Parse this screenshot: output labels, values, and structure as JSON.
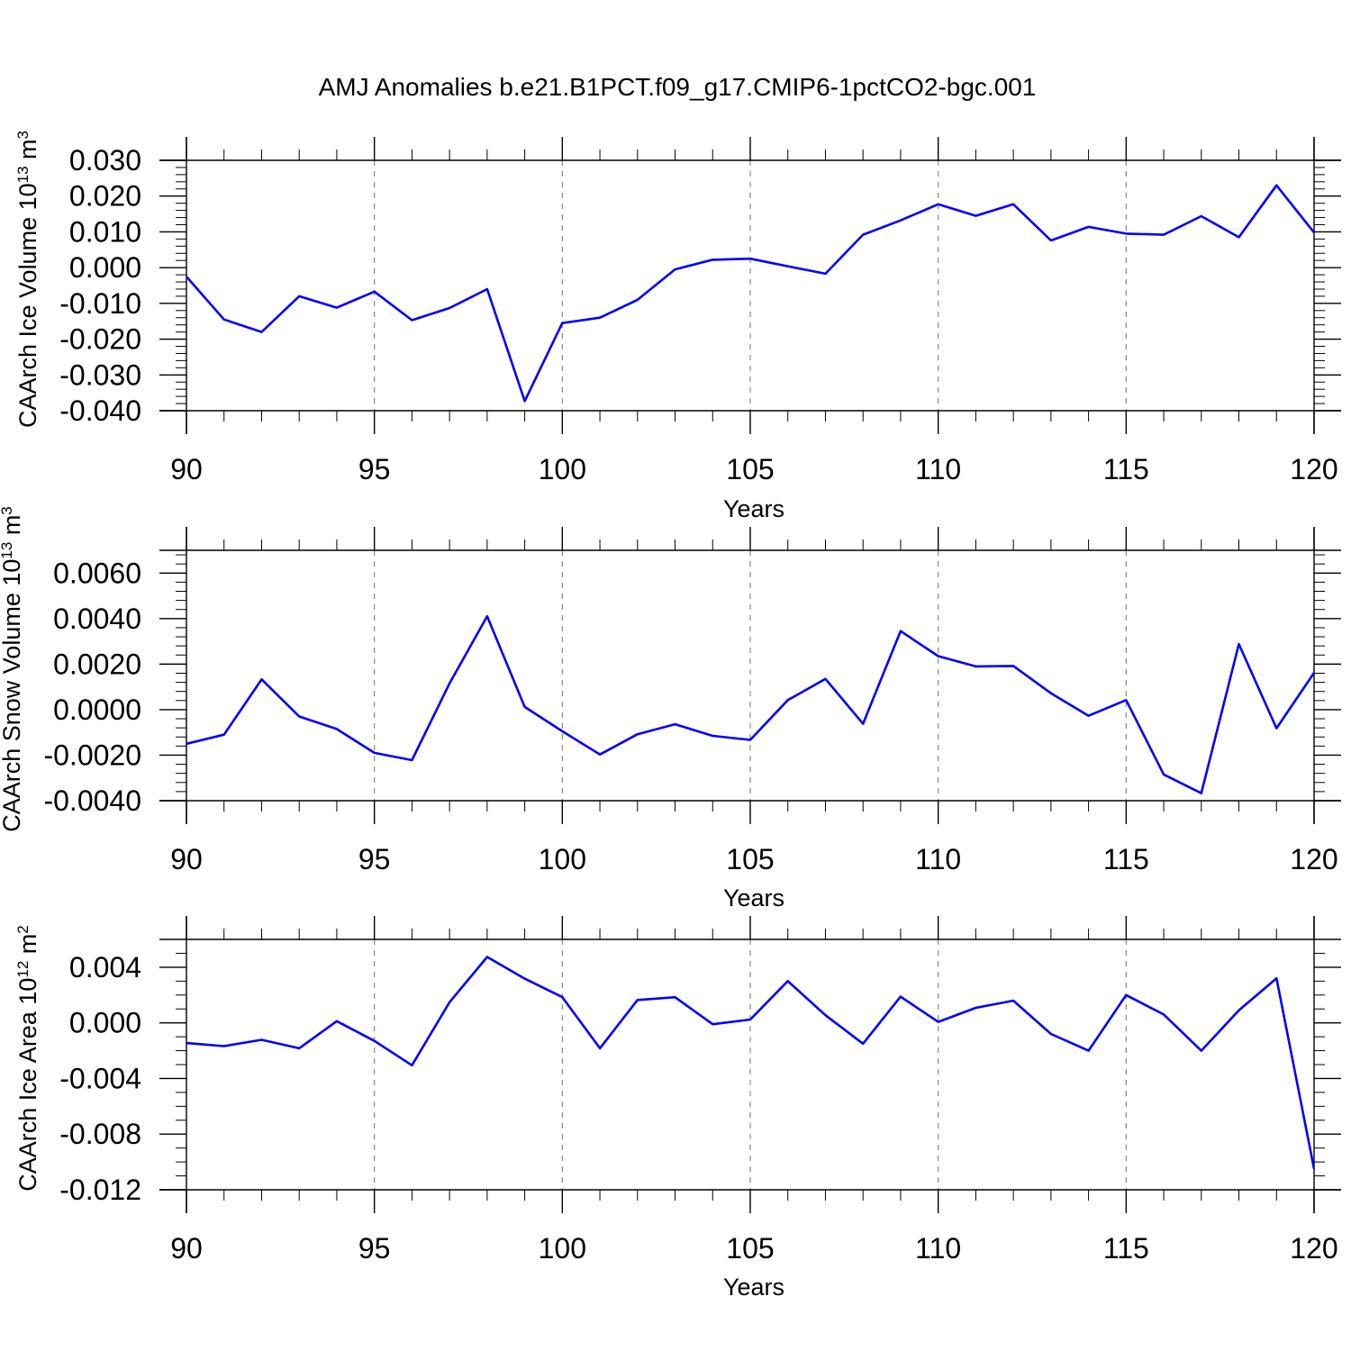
{
  "title": "AMJ Anomalies b.e21.B1PCT.f09_g17.CMIP6-1pctCO2-bgc.001",
  "chart_data": [
    {
      "type": "line",
      "title": "",
      "xlabel": "Years",
      "ylabel": "CAArch Ice Volume 10",
      "ylabel_exp": "13",
      "ylabel_unit": " m",
      "ylabel_unit_exp": "3",
      "xlim": [
        90,
        120
      ],
      "ylim": [
        -0.04,
        0.03
      ],
      "yticks": [
        -0.04,
        -0.03,
        -0.02,
        -0.01,
        0.0,
        0.01,
        0.02,
        0.03
      ],
      "ytick_labels": [
        "-0.040",
        "-0.030",
        "-0.020",
        "-0.010",
        "0.000",
        "0.010",
        "0.020",
        "0.030"
      ],
      "yminor_step": 0.002,
      "xticks": [
        90,
        95,
        100,
        105,
        110,
        115,
        120
      ],
      "xtick_labels": [
        "90",
        "95",
        "100",
        "105",
        "110",
        "115",
        "120"
      ],
      "grid": "vertical dashed at major x ticks",
      "line_color": "#0000ff",
      "x": [
        90,
        91,
        92,
        93,
        94,
        95,
        96,
        97,
        98,
        99,
        100,
        101,
        102,
        103,
        104,
        105,
        106,
        107,
        108,
        109,
        110,
        111,
        112,
        113,
        114,
        115,
        116,
        117,
        118,
        119,
        120
      ],
      "y": [
        -0.0025,
        -0.0145,
        -0.018,
        -0.008,
        -0.0112,
        -0.0067,
        -0.0147,
        -0.0113,
        -0.006,
        -0.0373,
        -0.0155,
        -0.014,
        -0.009,
        -0.0005,
        0.0022,
        0.0025,
        0.0004,
        -0.0017,
        0.0092,
        0.0132,
        0.0177,
        0.0145,
        0.0177,
        0.0076,
        0.0114,
        0.0095,
        0.0092,
        0.0144,
        0.0085,
        0.023,
        0.0098
      ]
    },
    {
      "type": "line",
      "title": "",
      "xlabel": "Years",
      "ylabel": "CAArch Snow Volume 10",
      "ylabel_exp": "13",
      "ylabel_unit": " m",
      "ylabel_unit_exp": "3",
      "xlim": [
        90,
        120
      ],
      "ylim": [
        -0.004,
        0.007
      ],
      "yticks": [
        -0.004,
        -0.002,
        0.0,
        0.002,
        0.004,
        0.006
      ],
      "ytick_labels": [
        "-0.0040",
        "-0.0020",
        "0.0000",
        "0.0020",
        "0.0040",
        "0.0060"
      ],
      "yminor_step": 0.0004,
      "xticks": [
        90,
        95,
        100,
        105,
        110,
        115,
        120
      ],
      "xtick_labels": [
        "90",
        "95",
        "100",
        "105",
        "110",
        "115",
        "120"
      ],
      "grid": "vertical dashed at major x ticks",
      "line_color": "#0000ff",
      "x": [
        90,
        91,
        92,
        93,
        94,
        95,
        96,
        97,
        98,
        99,
        100,
        101,
        102,
        103,
        104,
        105,
        106,
        107,
        108,
        109,
        110,
        111,
        112,
        113,
        114,
        115,
        116,
        117,
        118,
        119,
        120
      ],
      "y": [
        -0.0015,
        -0.0011,
        0.00133,
        -0.0003,
        -0.00085,
        -0.0019,
        -0.00222,
        0.00115,
        0.0041,
        0.00012,
        -0.00095,
        -0.00197,
        -0.00108,
        -0.00064,
        -0.00115,
        -0.00133,
        0.00042,
        0.00135,
        -0.00062,
        0.00345,
        0.00235,
        0.0019,
        0.00192,
        0.00072,
        -0.00027,
        0.00042,
        -0.00285,
        -0.00367,
        0.00288,
        -0.00082,
        0.00162
      ]
    },
    {
      "type": "line",
      "title": "",
      "xlabel": "Years",
      "ylabel": "CAArch Ice Area 10",
      "ylabel_exp": "12",
      "ylabel_unit": " m",
      "ylabel_unit_exp": "2",
      "xlim": [
        90,
        120
      ],
      "ylim": [
        -0.012,
        0.006
      ],
      "yticks": [
        -0.012,
        -0.008,
        -0.004,
        0.0,
        0.004
      ],
      "ytick_labels": [
        "-0.012",
        "-0.008",
        "-0.004",
        "0.000",
        "0.004"
      ],
      "yminor_step": 0.001,
      "xticks": [
        90,
        95,
        100,
        105,
        110,
        115,
        120
      ],
      "xtick_labels": [
        "90",
        "95",
        "100",
        "105",
        "110",
        "115",
        "120"
      ],
      "grid": "vertical dashed at major x ticks",
      "line_color": "#0000ff",
      "x": [
        90,
        91,
        92,
        93,
        94,
        95,
        96,
        97,
        98,
        99,
        100,
        101,
        102,
        103,
        104,
        105,
        106,
        107,
        108,
        109,
        110,
        111,
        112,
        113,
        114,
        115,
        116,
        117,
        118,
        119,
        120
      ],
      "y": [
        -0.00145,
        -0.00167,
        -0.00122,
        -0.00183,
        0.00012,
        -0.0013,
        -0.00305,
        0.00148,
        0.00474,
        0.00318,
        0.00185,
        -0.00183,
        0.00164,
        0.00184,
        -0.0001,
        0.00024,
        0.003,
        0.00055,
        -0.0015,
        0.00188,
        7e-05,
        0.00108,
        0.0016,
        -0.0008,
        -0.002,
        0.002,
        0.0006,
        -0.002,
        0.0009,
        0.0032,
        -0.0105
      ]
    }
  ]
}
